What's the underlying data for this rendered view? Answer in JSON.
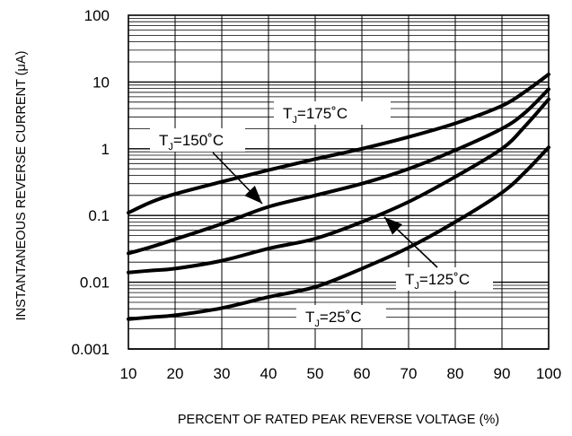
{
  "chart_data": {
    "type": "line",
    "title": "",
    "xlabel": "PERCENT OF RATED PEAK REVERSE VOLTAGE (%)",
    "ylabel": "INSTANTANEOUS REVERSE CURRENT (μA)",
    "xlim": [
      10,
      100
    ],
    "ylim": [
      0.001,
      100
    ],
    "y_scale": "log",
    "grid": true,
    "x_ticks": [
      "10",
      "20",
      "30",
      "40",
      "50",
      "60",
      "70",
      "80",
      "90",
      "100"
    ],
    "y_ticks": [
      "100",
      "10",
      "1",
      "0.1",
      "0.01",
      "0.001"
    ],
    "x_tick_values": [
      10,
      20,
      30,
      40,
      50,
      60,
      70,
      80,
      90,
      100
    ],
    "y_tick_values": [
      100,
      10,
      1,
      0.1,
      0.01,
      0.001
    ],
    "series": [
      {
        "name": "TJ=175°C",
        "label_main": "T",
        "label_sub": "J",
        "label_rest": "=175˚C",
        "x": [
          10,
          15,
          20,
          30,
          40,
          50,
          60,
          70,
          80,
          90,
          95,
          100
        ],
        "y": [
          0.11,
          0.16,
          0.21,
          0.32,
          0.48,
          0.7,
          1.0,
          1.5,
          2.4,
          4.4,
          7.2,
          13
        ]
      },
      {
        "name": "TJ=150°C",
        "label_main": "T",
        "label_sub": "J",
        "label_rest": "=150˚C",
        "x": [
          10,
          15,
          20,
          30,
          40,
          50,
          60,
          70,
          80,
          90,
          95,
          100
        ],
        "y": [
          0.027,
          0.034,
          0.044,
          0.075,
          0.135,
          0.2,
          0.3,
          0.5,
          0.95,
          2.0,
          3.5,
          7.8
        ]
      },
      {
        "name": "TJ=125°C",
        "label_main": "T",
        "label_sub": "J",
        "label_rest": "=125˚C",
        "x": [
          10,
          15,
          20,
          30,
          40,
          50,
          60,
          70,
          80,
          90,
          95,
          100
        ],
        "y": [
          0.014,
          0.015,
          0.016,
          0.021,
          0.032,
          0.045,
          0.08,
          0.16,
          0.38,
          1.0,
          2.2,
          5.5
        ]
      },
      {
        "name": "TJ=25°C",
        "label_main": "T",
        "label_sub": "J",
        "label_rest": "=25˚C",
        "x": [
          10,
          15,
          20,
          30,
          40,
          50,
          60,
          70,
          80,
          90,
          95,
          100
        ],
        "y": [
          0.0028,
          0.003,
          0.0032,
          0.0041,
          0.006,
          0.0085,
          0.016,
          0.033,
          0.08,
          0.22,
          0.45,
          1.05
        ]
      }
    ]
  }
}
